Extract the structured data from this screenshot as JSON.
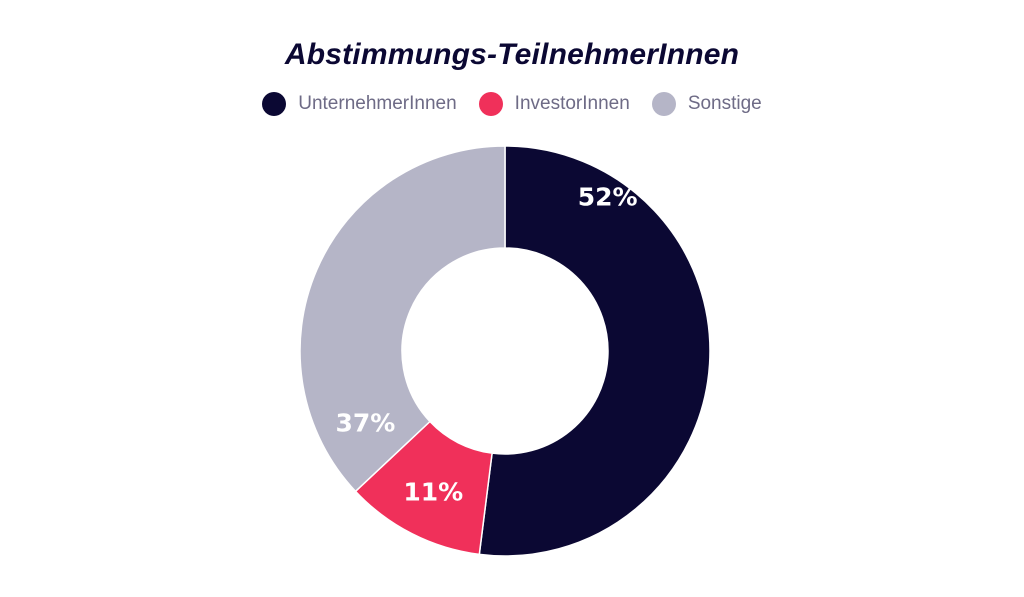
{
  "chart_data": {
    "type": "pie",
    "title": "Abstimmungs-TeilnehmerInnen",
    "legend_position": "top",
    "donut": true,
    "slices": [
      {
        "name": "UnternehmerInnen",
        "value": 52,
        "label": "52%",
        "color": "#0b0833"
      },
      {
        "name": "InvestorInnen",
        "value": 11,
        "label": "11%",
        "color": "#f0305a"
      },
      {
        "name": "Sonstige",
        "value": 37,
        "label": "37%",
        "color": "#b5b5c7"
      }
    ]
  }
}
